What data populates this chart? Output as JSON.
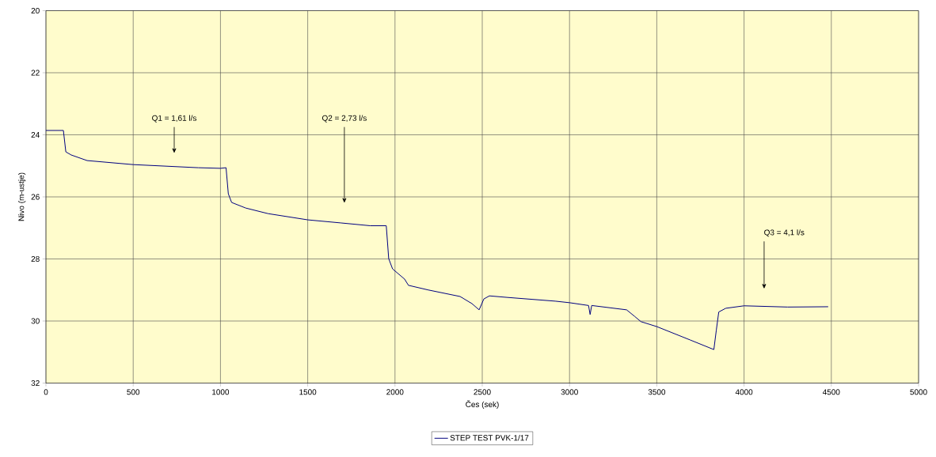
{
  "chart_data": {
    "type": "line",
    "xlabel": "Čes (sek)",
    "ylabel": "Nivo (m-ustje)",
    "xlim": [
      0,
      5000
    ],
    "xticks": [
      0,
      500,
      1000,
      1500,
      2000,
      2500,
      3000,
      3500,
      4000,
      4500,
      5000
    ],
    "ylim": [
      32,
      20
    ],
    "yticks": [
      20,
      22,
      24,
      26,
      28,
      30,
      32
    ],
    "grid": true,
    "legend": "bottom",
    "marker": "none",
    "line_style": "solid",
    "series": [
      {
        "name": "STEP TEST PVK-1/17",
        "color": "#000080",
        "x": [
          0,
          100,
          114,
          145,
          236,
          500,
          873,
          1000,
          1032,
          1045,
          1064,
          1145,
          1273,
          1500,
          1691,
          1859,
          1950,
          1964,
          1986,
          2055,
          2077,
          2191,
          2373,
          2441,
          2482,
          2509,
          2541,
          2645,
          2918,
          3000,
          3109,
          3118,
          3127,
          3327,
          3373,
          3409,
          3500,
          3691,
          3827,
          3841,
          3855,
          3895,
          4000,
          4250,
          4482
        ],
        "values": [
          23.86,
          23.86,
          24.55,
          24.65,
          24.83,
          24.96,
          25.06,
          25.08,
          25.06,
          25.9,
          26.18,
          26.36,
          26.54,
          26.74,
          26.84,
          26.93,
          26.93,
          27.99,
          28.32,
          28.65,
          28.85,
          29.0,
          29.21,
          29.44,
          29.64,
          29.29,
          29.19,
          29.24,
          29.36,
          29.41,
          29.5,
          29.79,
          29.5,
          29.64,
          29.85,
          30.02,
          30.18,
          30.61,
          30.92,
          30.3,
          29.71,
          29.59,
          29.51,
          29.55,
          29.54
        ]
      }
    ],
    "annotations": [
      "Q1 = 1,61 l/s",
      "Q2 = 2,73 l/s",
      "Q3 = 4,1 l/s"
    ]
  }
}
